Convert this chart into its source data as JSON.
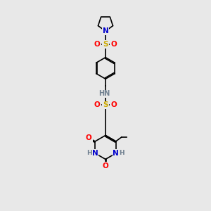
{
  "background_color": "#e8e8e8",
  "atom_colors": {
    "C": "#000000",
    "N": "#0000cc",
    "O": "#ff0000",
    "S": "#ccaa00",
    "H": "#708090"
  },
  "bond_color": "#000000",
  "figsize": [
    3.0,
    3.0
  ],
  "dpi": 100
}
